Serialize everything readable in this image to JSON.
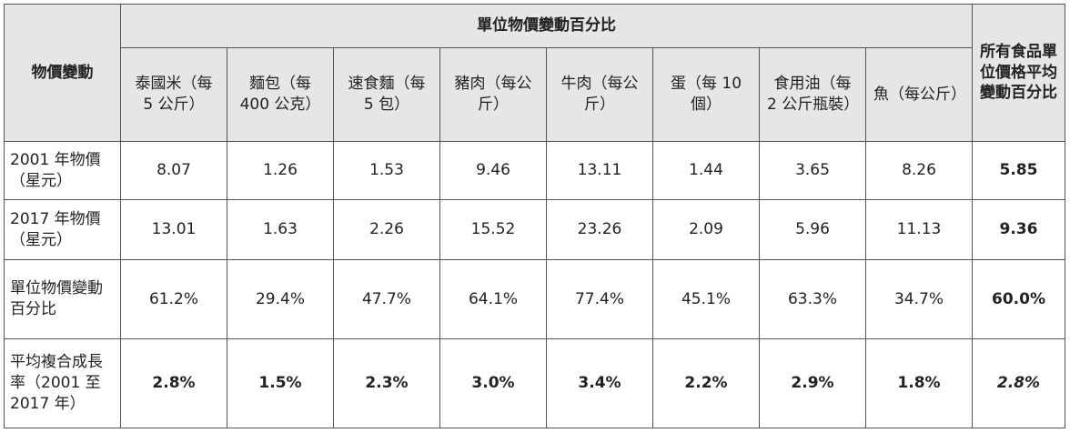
{
  "table": {
    "row_header": "物價變動",
    "group_header": "單位物價變動百分比",
    "last_header": "所有食品單位價格平均變動百分比",
    "columns": [
      "泰國米（每 5 公斤）",
      "麵包（每 400 公克）",
      "速食麵（每 5 包）",
      "豬肉（每公斤）",
      "牛肉（每公斤）",
      "蛋（每 10 個）",
      "食用油（每 2 公斤瓶裝）",
      "魚（每公斤）"
    ],
    "rows": [
      {
        "label": "2001 年物價（星元）",
        "cells": [
          "8.07",
          "1.26",
          "1.53",
          "9.46",
          "13.11",
          "1.44",
          "3.65",
          "8.26"
        ],
        "average": "5.85"
      },
      {
        "label": "2017 年物價（星元）",
        "cells": [
          "13.01",
          "1.63",
          "2.26",
          "15.52",
          "23.26",
          "2.09",
          "5.96",
          "11.13"
        ],
        "average": "9.36"
      },
      {
        "label": "單位物價變動百分比",
        "cells": [
          "61.2%",
          "29.4%",
          "47.7%",
          "64.1%",
          "77.4%",
          "45.1%",
          "63.3%",
          "34.7%"
        ],
        "average": "60.0%"
      },
      {
        "label": "平均複合成長率（2001 至 2017 年）",
        "cells": [
          "2.8%",
          "1.5%",
          "2.3%",
          "3.0%",
          "3.4%",
          "2.2%",
          "2.9%",
          "1.8%"
        ],
        "average": "2.8%"
      }
    ]
  }
}
